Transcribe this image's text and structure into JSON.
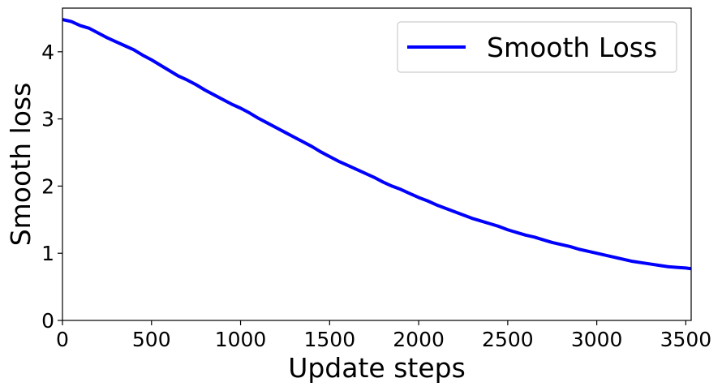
{
  "chart_data": {
    "type": "line",
    "xlabel": "Update steps",
    "ylabel": "Smooth loss",
    "xlim": [
      0,
      3530
    ],
    "ylim": [
      0,
      4.65
    ],
    "xticks": [
      0,
      500,
      1000,
      1500,
      2000,
      2500,
      3000,
      3500
    ],
    "xtick_labels": [
      "0",
      "500",
      "1000",
      "1500",
      "2000",
      "2500",
      "3000",
      "3500"
    ],
    "yticks": [
      0,
      1,
      2,
      3,
      4
    ],
    "ytick_labels": [
      "0",
      "1",
      "2",
      "3",
      "4"
    ],
    "grid": false,
    "legend_position": "top-right",
    "series": [
      {
        "name": "Smooth Loss",
        "color": "#0000ff",
        "x": [
          0,
          50,
          100,
          150,
          200,
          250,
          300,
          350,
          400,
          450,
          500,
          550,
          600,
          650,
          700,
          750,
          800,
          850,
          900,
          950,
          1000,
          1050,
          1100,
          1150,
          1200,
          1250,
          1300,
          1350,
          1400,
          1450,
          1500,
          1550,
          1600,
          1650,
          1700,
          1750,
          1800,
          1850,
          1900,
          1950,
          2000,
          2050,
          2100,
          2150,
          2200,
          2250,
          2300,
          2350,
          2400,
          2450,
          2500,
          2550,
          2600,
          2650,
          2700,
          2750,
          2800,
          2850,
          2900,
          2950,
          3000,
          3050,
          3100,
          3150,
          3200,
          3250,
          3300,
          3350,
          3400,
          3450,
          3500,
          3530
        ],
        "y": [
          4.48,
          4.45,
          4.39,
          4.35,
          4.28,
          4.21,
          4.15,
          4.09,
          4.03,
          3.95,
          3.88,
          3.8,
          3.72,
          3.64,
          3.58,
          3.51,
          3.43,
          3.36,
          3.29,
          3.22,
          3.16,
          3.09,
          3.01,
          2.94,
          2.87,
          2.8,
          2.73,
          2.66,
          2.59,
          2.51,
          2.44,
          2.37,
          2.31,
          2.25,
          2.19,
          2.13,
          2.06,
          2.0,
          1.95,
          1.89,
          1.83,
          1.78,
          1.72,
          1.67,
          1.62,
          1.57,
          1.52,
          1.48,
          1.44,
          1.4,
          1.35,
          1.31,
          1.27,
          1.24,
          1.2,
          1.16,
          1.13,
          1.1,
          1.06,
          1.03,
          1.0,
          0.97,
          0.94,
          0.91,
          0.88,
          0.86,
          0.84,
          0.82,
          0.8,
          0.79,
          0.78,
          0.77
        ]
      }
    ]
  }
}
